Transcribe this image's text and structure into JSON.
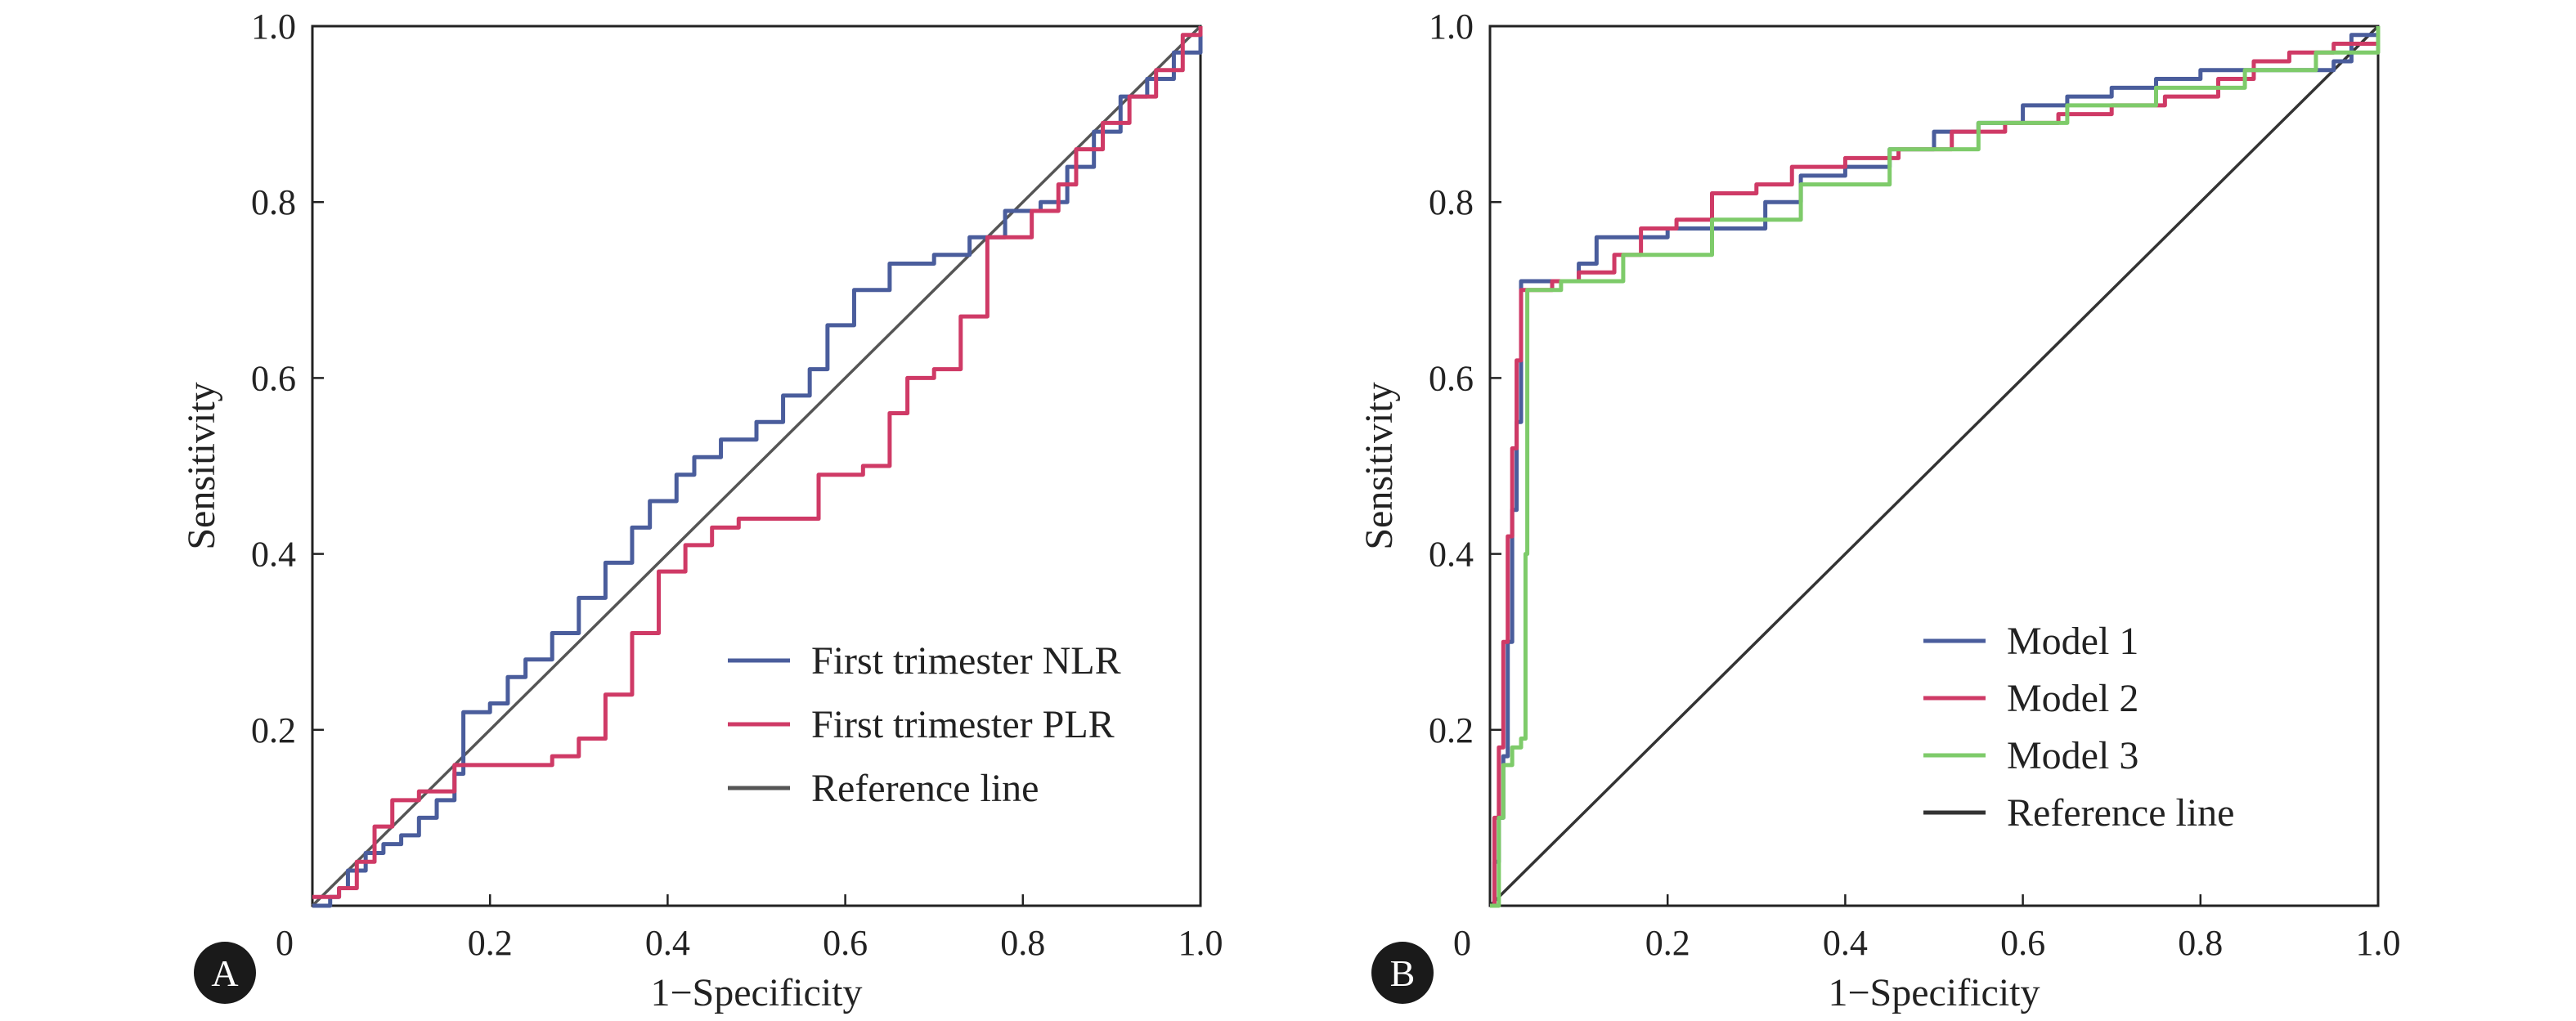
{
  "chart_data": [
    {
      "panel_label": "A",
      "type": "line",
      "xlabel": "1−Specificity",
      "ylabel": "Sensitivity",
      "xlim": [
        0,
        1
      ],
      "ylim": [
        0,
        1
      ],
      "xticks": [
        "0",
        "0.2",
        "0.4",
        "0.6",
        "0.8",
        "1.0"
      ],
      "yticks": [
        "0.2",
        "0.4",
        "0.6",
        "0.8",
        "1.0"
      ],
      "legend_position": "bottom-right",
      "series": [
        {
          "name": "First trimester NLR",
          "color": "#4a5d9c",
          "points": [
            [
              0,
              0
            ],
            [
              0.02,
              0.01
            ],
            [
              0.03,
              0.02
            ],
            [
              0.04,
              0.04
            ],
            [
              0.06,
              0.06
            ],
            [
              0.08,
              0.07
            ],
            [
              0.1,
              0.08
            ],
            [
              0.12,
              0.1
            ],
            [
              0.14,
              0.12
            ],
            [
              0.16,
              0.15
            ],
            [
              0.17,
              0.22
            ],
            [
              0.2,
              0.23
            ],
            [
              0.22,
              0.26
            ],
            [
              0.24,
              0.28
            ],
            [
              0.27,
              0.31
            ],
            [
              0.3,
              0.35
            ],
            [
              0.33,
              0.39
            ],
            [
              0.36,
              0.43
            ],
            [
              0.38,
              0.46
            ],
            [
              0.41,
              0.49
            ],
            [
              0.43,
              0.51
            ],
            [
              0.46,
              0.53
            ],
            [
              0.5,
              0.55
            ],
            [
              0.53,
              0.58
            ],
            [
              0.56,
              0.61
            ],
            [
              0.58,
              0.66
            ],
            [
              0.61,
              0.7
            ],
            [
              0.65,
              0.73
            ],
            [
              0.7,
              0.74
            ],
            [
              0.74,
              0.76
            ],
            [
              0.78,
              0.79
            ],
            [
              0.82,
              0.8
            ],
            [
              0.85,
              0.84
            ],
            [
              0.88,
              0.88
            ],
            [
              0.91,
              0.92
            ],
            [
              0.94,
              0.94
            ],
            [
              0.97,
              0.97
            ],
            [
              1,
              1
            ]
          ]
        },
        {
          "name": "First trimester PLR",
          "color": "#cf3a66",
          "points": [
            [
              0,
              0.01
            ],
            [
              0.03,
              0.02
            ],
            [
              0.05,
              0.05
            ],
            [
              0.07,
              0.09
            ],
            [
              0.09,
              0.12
            ],
            [
              0.12,
              0.13
            ],
            [
              0.16,
              0.16
            ],
            [
              0.22,
              0.16
            ],
            [
              0.27,
              0.17
            ],
            [
              0.3,
              0.19
            ],
            [
              0.33,
              0.24
            ],
            [
              0.36,
              0.31
            ],
            [
              0.39,
              0.38
            ],
            [
              0.42,
              0.41
            ],
            [
              0.45,
              0.43
            ],
            [
              0.48,
              0.44
            ],
            [
              0.56,
              0.44
            ],
            [
              0.57,
              0.49
            ],
            [
              0.62,
              0.5
            ],
            [
              0.65,
              0.56
            ],
            [
              0.67,
              0.6
            ],
            [
              0.7,
              0.61
            ],
            [
              0.73,
              0.67
            ],
            [
              0.76,
              0.76
            ],
            [
              0.81,
              0.79
            ],
            [
              0.84,
              0.82
            ],
            [
              0.86,
              0.86
            ],
            [
              0.89,
              0.89
            ],
            [
              0.92,
              0.92
            ],
            [
              0.95,
              0.95
            ],
            [
              0.98,
              0.99
            ],
            [
              1,
              1
            ]
          ]
        },
        {
          "name": "Reference line",
          "color": "#555555",
          "points": [
            [
              0,
              0
            ],
            [
              1,
              1
            ]
          ]
        }
      ]
    },
    {
      "panel_label": "B",
      "type": "line",
      "xlabel": "1−Specificity",
      "ylabel": "Sensitivity",
      "xlim": [
        0,
        1
      ],
      "ylim": [
        0,
        1
      ],
      "xticks": [
        "0",
        "0.2",
        "0.4",
        "0.6",
        "0.8",
        "1.0"
      ],
      "yticks": [
        "0.2",
        "0.4",
        "0.6",
        "0.8",
        "1.0"
      ],
      "legend_position": "bottom-right",
      "series": [
        {
          "name": "Model 1",
          "color": "#4a5d9c",
          "points": [
            [
              0,
              0
            ],
            [
              0.005,
              0.05
            ],
            [
              0.01,
              0.1
            ],
            [
              0.015,
              0.17
            ],
            [
              0.02,
              0.3
            ],
            [
              0.025,
              0.45
            ],
            [
              0.03,
              0.55
            ],
            [
              0.035,
              0.71
            ],
            [
              0.07,
              0.71
            ],
            [
              0.1,
              0.73
            ],
            [
              0.12,
              0.76
            ],
            [
              0.16,
              0.76
            ],
            [
              0.2,
              0.77
            ],
            [
              0.28,
              0.77
            ],
            [
              0.31,
              0.8
            ],
            [
              0.35,
              0.83
            ],
            [
              0.4,
              0.84
            ],
            [
              0.45,
              0.86
            ],
            [
              0.5,
              0.88
            ],
            [
              0.55,
              0.89
            ],
            [
              0.6,
              0.91
            ],
            [
              0.65,
              0.92
            ],
            [
              0.7,
              0.93
            ],
            [
              0.75,
              0.94
            ],
            [
              0.8,
              0.95
            ],
            [
              0.85,
              0.95
            ],
            [
              0.9,
              0.95
            ],
            [
              0.95,
              0.96
            ],
            [
              0.97,
              0.99
            ],
            [
              1,
              1
            ]
          ]
        },
        {
          "name": "Model 2",
          "color": "#cf3a66",
          "points": [
            [
              0,
              0
            ],
            [
              0.005,
              0.1
            ],
            [
              0.01,
              0.18
            ],
            [
              0.015,
              0.3
            ],
            [
              0.02,
              0.42
            ],
            [
              0.025,
              0.52
            ],
            [
              0.03,
              0.62
            ],
            [
              0.035,
              0.7
            ],
            [
              0.07,
              0.71
            ],
            [
              0.1,
              0.72
            ],
            [
              0.14,
              0.74
            ],
            [
              0.17,
              0.77
            ],
            [
              0.21,
              0.78
            ],
            [
              0.25,
              0.81
            ],
            [
              0.3,
              0.82
            ],
            [
              0.34,
              0.84
            ],
            [
              0.4,
              0.85
            ],
            [
              0.46,
              0.86
            ],
            [
              0.52,
              0.88
            ],
            [
              0.58,
              0.89
            ],
            [
              0.64,
              0.9
            ],
            [
              0.7,
              0.91
            ],
            [
              0.76,
              0.92
            ],
            [
              0.82,
              0.94
            ],
            [
              0.86,
              0.96
            ],
            [
              0.9,
              0.97
            ],
            [
              0.95,
              0.98
            ],
            [
              1,
              1
            ]
          ]
        },
        {
          "name": "Model 3",
          "color": "#7ecb6a",
          "points": [
            [
              0,
              0
            ],
            [
              0.01,
              0.1
            ],
            [
              0.015,
              0.16
            ],
            [
              0.025,
              0.18
            ],
            [
              0.035,
              0.19
            ],
            [
              0.04,
              0.4
            ],
            [
              0.042,
              0.7
            ],
            [
              0.08,
              0.71
            ],
            [
              0.15,
              0.74
            ],
            [
              0.25,
              0.78
            ],
            [
              0.35,
              0.82
            ],
            [
              0.45,
              0.86
            ],
            [
              0.55,
              0.89
            ],
            [
              0.65,
              0.91
            ],
            [
              0.75,
              0.93
            ],
            [
              0.85,
              0.95
            ],
            [
              0.93,
              0.97
            ],
            [
              1,
              1
            ]
          ]
        },
        {
          "name": "Reference line",
          "color": "#333333",
          "points": [
            [
              0,
              0
            ],
            [
              1,
              1
            ]
          ]
        }
      ]
    }
  ]
}
